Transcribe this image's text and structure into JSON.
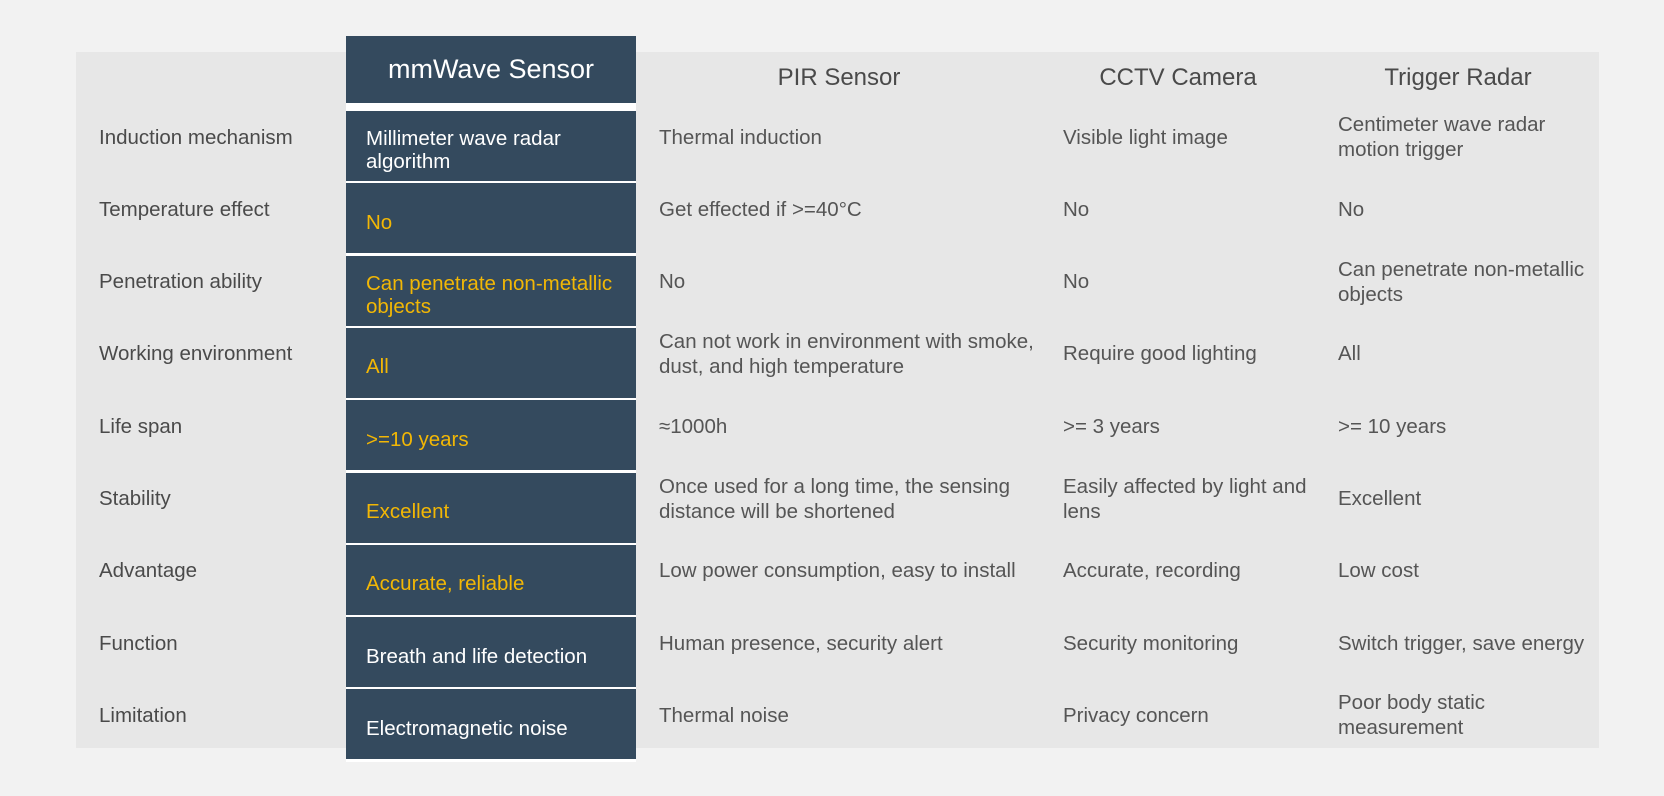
{
  "colors": {
    "highlight_bg": "#344a5e",
    "highlight_text": "#f2b705",
    "panel_bg": "#e7e7e7"
  },
  "headers": [
    "mmWave Sensor",
    "PIR Sensor",
    "CCTV Camera",
    "Trigger Radar"
  ],
  "rows": [
    {
      "label": "Induction mechanism",
      "mmwave": "Millimeter wave radar algorithm",
      "mmwave_highlight": false,
      "pir": "Thermal induction",
      "cctv": "Visible light image",
      "trigger": "Centimeter wave radar motion trigger"
    },
    {
      "label": "Temperature effect",
      "mmwave": "No",
      "mmwave_highlight": true,
      "pir": "Get effected if >=40°C",
      "cctv": "No",
      "trigger": "No"
    },
    {
      "label": "Penetration ability",
      "mmwave": "Can penetrate non-metallic objects",
      "mmwave_highlight": true,
      "pir": "No",
      "cctv": "No",
      "trigger": "Can penetrate non-metallic objects"
    },
    {
      "label": "Working environment",
      "mmwave": "All",
      "mmwave_highlight": true,
      "pir": "Can not work in environment with smoke, dust, and high temperature",
      "cctv": "Require good lighting",
      "trigger": "All"
    },
    {
      "label": "Life span",
      "mmwave": ">=10 years",
      "mmwave_highlight": true,
      "pir": "≈1000h",
      "cctv": ">= 3 years",
      "trigger": ">= 10 years"
    },
    {
      "label": "Stability",
      "mmwave": "Excellent",
      "mmwave_highlight": true,
      "pir": "Once used for a long time, the sensing distance will be shortened",
      "cctv": "Easily affected by light and lens",
      "trigger": "Excellent"
    },
    {
      "label": "Advantage",
      "mmwave": "Accurate, reliable",
      "mmwave_highlight": true,
      "pir": "Low power consumption, easy to install",
      "cctv": "Accurate, recording",
      "trigger": "Low cost"
    },
    {
      "label": "Function",
      "mmwave": "Breath and life detection",
      "mmwave_highlight": false,
      "pir": "Human presence, security alert",
      "cctv": "Security monitoring",
      "trigger": "Switch trigger, save energy"
    },
    {
      "label": "Limitation",
      "mmwave": "Electromagnetic noise",
      "mmwave_highlight": false,
      "pir": "Thermal noise",
      "cctv": "Privacy concern",
      "trigger": "Poor body static measurement"
    }
  ]
}
